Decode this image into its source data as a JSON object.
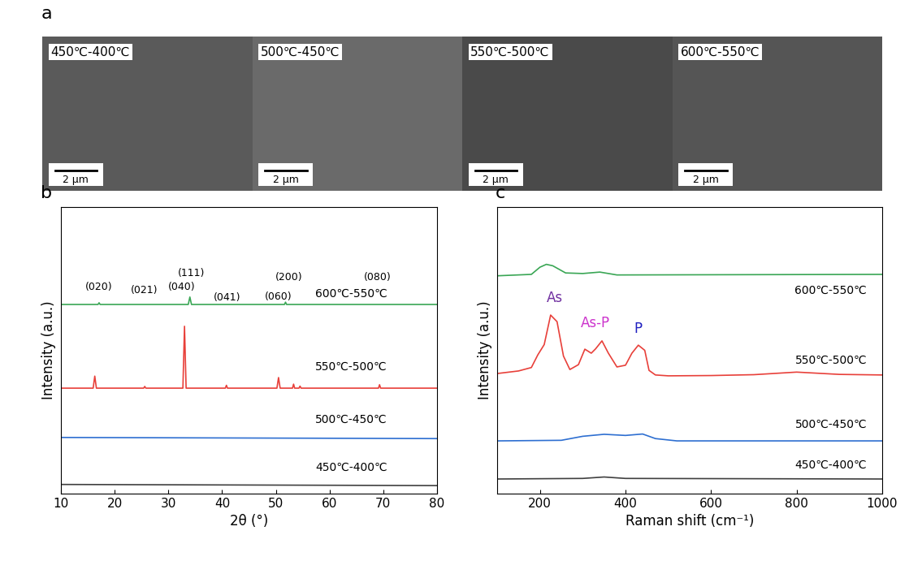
{
  "panel_labels": [
    "a",
    "b",
    "c"
  ],
  "sem_images": [
    {
      "label": "450℃-400℃",
      "scale_bar": "2 μm"
    },
    {
      "label": "500℃-450℃",
      "scale_bar": "2 μm"
    },
    {
      "label": "550℃-500℃",
      "scale_bar": "2 μm"
    },
    {
      "label": "600℃-550℃",
      "scale_bar": "2 μm"
    }
  ],
  "chart_data": [
    {
      "type": "line",
      "x_label": "2θ (°)",
      "y_label": "Intensity (a.u.)",
      "xlim": [
        10,
        80
      ],
      "xticks": [
        10,
        20,
        30,
        40,
        50,
        60,
        70,
        80
      ],
      "ylim": [
        0,
        100
      ],
      "tick_labels": "x",
      "series": [
        {
          "name": "600℃-550℃",
          "color": "#3aa655",
          "label_at": [
            64,
            69.7
          ],
          "x": [
            10,
            16.9,
            17.1,
            17.3,
            33.7,
            34.0,
            34.3,
            51.6,
            51.8,
            52.0,
            80
          ],
          "values": [
            66,
            66,
            66.6,
            66,
            66,
            68.6,
            66,
            66,
            66.8,
            66,
            66
          ]
        },
        {
          "name": "550℃-500℃",
          "color": "#e8403a",
          "label_at": [
            64,
            44.2
          ],
          "x": [
            10,
            16.0,
            16.3,
            16.6,
            25.4,
            25.6,
            25.8,
            32.7,
            33.0,
            33.3,
            40.6,
            40.8,
            41.0,
            50.2,
            50.5,
            50.8,
            53.1,
            53.3,
            53.5,
            54.3,
            54.5,
            54.7,
            69.1,
            69.3,
            69.5,
            80
          ],
          "values": [
            36.8,
            36.8,
            41.0,
            36.8,
            36.8,
            37.4,
            36.8,
            36.8,
            58.4,
            36.8,
            36.8,
            37.8,
            36.8,
            36.8,
            40.5,
            36.8,
            36.8,
            38.2,
            36.8,
            36.8,
            37.5,
            36.8,
            36.8,
            38.0,
            36.8,
            36.8
          ]
        },
        {
          "name": "500℃-450℃",
          "color": "#2e6fd1",
          "label_at": [
            64,
            25.8
          ],
          "x": [
            10,
            80
          ],
          "values": [
            19.6,
            19.2
          ]
        },
        {
          "name": "450℃-400℃",
          "color": "#404040",
          "label_at": [
            64,
            9
          ],
          "x": [
            10,
            80
          ],
          "values": [
            3.2,
            2.8
          ]
        }
      ],
      "annotations": [
        {
          "text": "(020)",
          "x": 17,
          "y": 72,
          "color": "#000000"
        },
        {
          "text": "(021)",
          "x": 25.5,
          "y": 71,
          "color": "#000000"
        },
        {
          "text": "(040)",
          "x": 32.5,
          "y": 72,
          "color": "#000000"
        },
        {
          "text": "(111)",
          "x": 34.2,
          "y": 76.8,
          "color": "#000000"
        },
        {
          "text": "(041)",
          "x": 41,
          "y": 68.3,
          "color": "#000000"
        },
        {
          "text": "(060)",
          "x": 50.5,
          "y": 68.8,
          "color": "#000000"
        },
        {
          "text": "(200)",
          "x": 52.5,
          "y": 75.4,
          "color": "#000000"
        },
        {
          "text": "(080)",
          "x": 69,
          "y": 75.6,
          "color": "#000000"
        }
      ]
    },
    {
      "type": "line",
      "x_label": "Raman shift (cm⁻¹)",
      "y_label": "Intensity (a.u.)",
      "xlim": [
        100,
        1000
      ],
      "xticks": [
        200,
        400,
        600,
        800,
        1000
      ],
      "ylim": [
        0,
        100
      ],
      "tick_labels": "x",
      "series": [
        {
          "name": "600℃-550℃",
          "color": "#3aa655",
          "label_at": [
            880,
            71
          ],
          "x": [
            100,
            180,
            200,
            215,
            230,
            260,
            300,
            340,
            380,
            1000
          ],
          "values": [
            76,
            76.5,
            79,
            80,
            79.5,
            77,
            76.8,
            77.3,
            76.3,
            76.5
          ]
        },
        {
          "name": "550℃-500℃",
          "color": "#e8403a",
          "label_at": [
            880,
            46.5
          ],
          "x": [
            100,
            150,
            180,
            195,
            210,
            225,
            240,
            255,
            270,
            290,
            305,
            320,
            330,
            345,
            360,
            380,
            400,
            415,
            430,
            445,
            455,
            470,
            500,
            600,
            700,
            800,
            900,
            1000
          ],
          "values": [
            41.9,
            42.8,
            44,
            48.4,
            52,
            62.3,
            60,
            48,
            43.3,
            45,
            50.4,
            49,
            50.5,
            53.3,
            49,
            44.2,
            44.8,
            49,
            51.8,
            50,
            43,
            41.4,
            41.1,
            41.2,
            41.5,
            42.4,
            41.6,
            41.4
          ]
        },
        {
          "name": "500℃-450℃",
          "color": "#2e6fd1",
          "label_at": [
            880,
            24
          ],
          "x": [
            100,
            250,
            300,
            350,
            400,
            440,
            470,
            520,
            1000
          ],
          "values": [
            18.4,
            18.6,
            20,
            20.7,
            20.3,
            20.8,
            19.2,
            18.4,
            18.4
          ]
        },
        {
          "name": "450℃-400℃",
          "color": "#404040",
          "label_at": [
            880,
            10
          ],
          "x": [
            100,
            300,
            350,
            400,
            1000
          ],
          "values": [
            5.1,
            5.3,
            5.8,
            5.3,
            5.1
          ]
        }
      ],
      "annotations": [
        {
          "text": "As",
          "x": 235,
          "y": 68.3,
          "color": "#7030a0"
        },
        {
          "text": "As-P",
          "x": 330,
          "y": 59.5,
          "color": "#cc33cc"
        },
        {
          "text": "P",
          "x": 430,
          "y": 57.5,
          "color": "#2020c0"
        }
      ]
    }
  ]
}
